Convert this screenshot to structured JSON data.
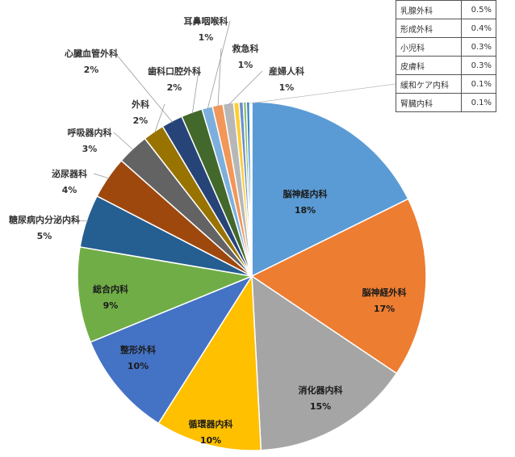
{
  "chart_data": {
    "type": "pie",
    "start_angle_deg": 0,
    "direction": "clockwise",
    "slices": [
      {
        "label": "脳神経内科",
        "value": 18,
        "percent_label": "18%",
        "color": "#5b9bd5"
      },
      {
        "label": "脳神経外科",
        "value": 17,
        "percent_label": "17%",
        "color": "#ed7d31"
      },
      {
        "label": "消化器内科",
        "value": 15,
        "percent_label": "15%",
        "color": "#a5a5a5"
      },
      {
        "label": "循環器内科",
        "value": 10,
        "percent_label": "10%",
        "color": "#ffc000"
      },
      {
        "label": "整形外科",
        "value": 10,
        "percent_label": "10%",
        "color": "#4472c4"
      },
      {
        "label": "総合内科",
        "value": 9,
        "percent_label": "9%",
        "color": "#70ad47"
      },
      {
        "label": "糖尿病内分泌内科",
        "value": 5,
        "percent_label": "5%",
        "color": "#255e91"
      },
      {
        "label": "泌尿器科",
        "value": 4,
        "percent_label": "4%",
        "color": "#9e480e"
      },
      {
        "label": "呼吸器内科",
        "value": 3,
        "percent_label": "3%",
        "color": "#636363"
      },
      {
        "label": "外科",
        "value": 2,
        "percent_label": "2%",
        "color": "#997300"
      },
      {
        "label": "心臓血管外科",
        "value": 2,
        "percent_label": "2%",
        "color": "#264478"
      },
      {
        "label": "歯科口腔外科",
        "value": 2,
        "percent_label": "2%",
        "color": "#43682b"
      },
      {
        "label": "耳鼻咽喉科",
        "value": 1,
        "percent_label": "1%",
        "color": "#7cafdd"
      },
      {
        "label": "救急科",
        "value": 1,
        "percent_label": "1%",
        "color": "#f1975a"
      },
      {
        "label": "産婦人科",
        "value": 1,
        "percent_label": "1%",
        "color": "#b7b7b7"
      },
      {
        "label": "乳腺外科",
        "value": 0.5,
        "percent_label": "0.5%",
        "color": "#ffcd33"
      },
      {
        "label": "形成外科",
        "value": 0.4,
        "percent_label": "0.4%",
        "color": "#698ed0"
      },
      {
        "label": "小児科",
        "value": 0.3,
        "percent_label": "0.3%",
        "color": "#8cc168"
      },
      {
        "label": "皮膚科",
        "value": 0.3,
        "percent_label": "0.3%",
        "color": "#327dc2"
      },
      {
        "label": "緩和ケア内科",
        "value": 0.1,
        "percent_label": "0.1%",
        "color": "#d26012"
      },
      {
        "label": "腎臓内科",
        "value": 0.1,
        "percent_label": "0.1%",
        "color": "#848484"
      }
    ],
    "small_slices_table": [
      {
        "label": "乳腺外科",
        "value": "0.5%"
      },
      {
        "label": "形成外科",
        "value": "0.4%"
      },
      {
        "label": "小児科",
        "value": "0.3%"
      },
      {
        "label": "皮膚科",
        "value": "0.3%"
      },
      {
        "label": "緩和ケア内科",
        "value": "0.1%"
      },
      {
        "label": "腎臓内科",
        "value": "0.1%"
      }
    ]
  }
}
